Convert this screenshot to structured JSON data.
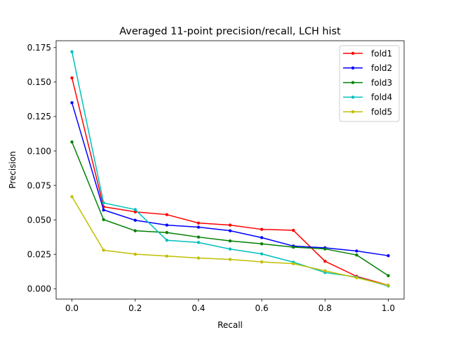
{
  "chart_data": {
    "type": "line",
    "title": "Averaged 11-point precision/recall, LCH hist",
    "xlabel": "Recall",
    "ylabel": "Precision",
    "xlim": [
      -0.05,
      1.05
    ],
    "ylim": [
      -0.0075,
      0.18
    ],
    "xticks": [
      "0.0",
      "0.2",
      "0.4",
      "0.6",
      "0.8",
      "1.0"
    ],
    "yticks": [
      "0.000",
      "0.025",
      "0.050",
      "0.075",
      "0.100",
      "0.125",
      "0.150",
      "0.175"
    ],
    "x": [
      0.0,
      0.1,
      0.2,
      0.3,
      0.4,
      0.5,
      0.6,
      0.7,
      0.8,
      0.9,
      1.0
    ],
    "grid": false,
    "legend_position": "top-right",
    "series": [
      {
        "name": "fold1",
        "color": "#ff0000",
        "values": [
          0.153,
          0.0595,
          0.0558,
          0.0538,
          0.0477,
          0.0462,
          0.0431,
          0.0424,
          0.02,
          0.009,
          0.0025
        ]
      },
      {
        "name": "fold2",
        "color": "#0000ff",
        "values": [
          0.135,
          0.0572,
          0.0497,
          0.0462,
          0.0447,
          0.0421,
          0.0371,
          0.031,
          0.0297,
          0.0274,
          0.024
        ]
      },
      {
        "name": "fold3",
        "color": "#008000",
        "values": [
          0.1065,
          0.0502,
          0.0421,
          0.0408,
          0.0375,
          0.0347,
          0.0326,
          0.0302,
          0.0289,
          0.0245,
          0.0095
        ]
      },
      {
        "name": "fold4",
        "color": "#00bfbf",
        "values": [
          0.172,
          0.0623,
          0.0575,
          0.0352,
          0.0336,
          0.0288,
          0.0253,
          0.0193,
          0.0118,
          0.0085,
          0.002
        ]
      },
      {
        "name": "fold5",
        "color": "#bfbf00",
        "values": [
          0.0668,
          0.028,
          0.0251,
          0.0237,
          0.0223,
          0.0213,
          0.0195,
          0.0182,
          0.013,
          0.008,
          0.0025
        ]
      }
    ]
  }
}
